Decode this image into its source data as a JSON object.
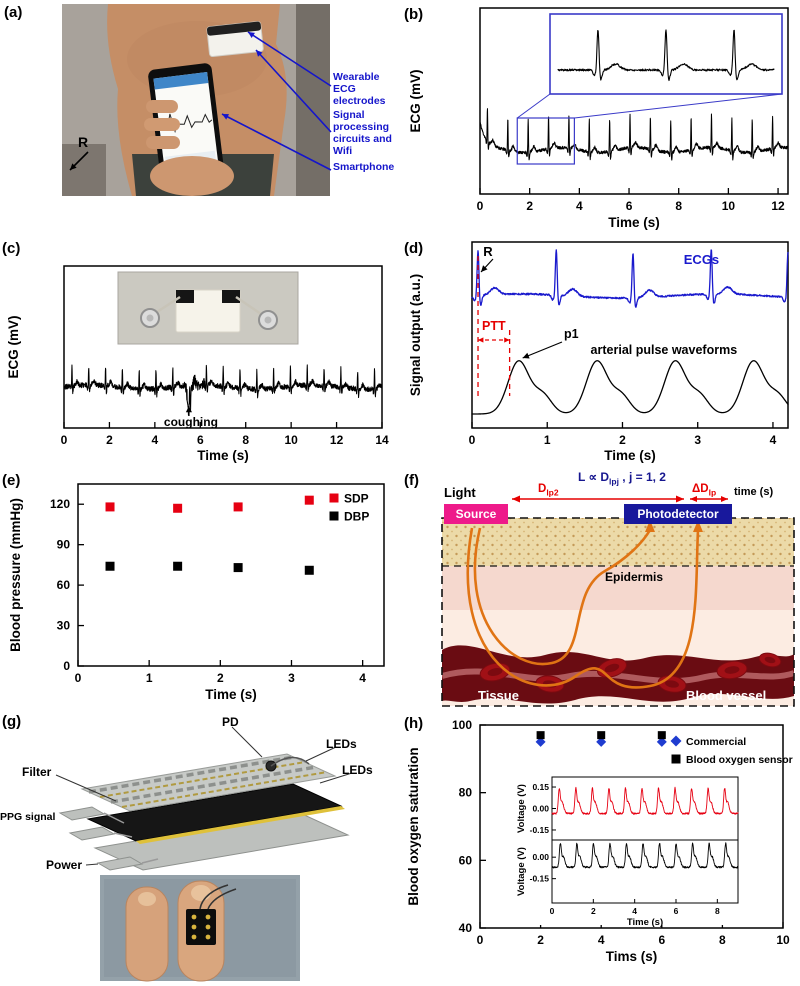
{
  "panels": {
    "a": {
      "label": "(a)",
      "r_marker": "R",
      "ann_electrodes": "Wearable ECG electrodes",
      "ann_circuits": "Signal processing circuits and Wifi",
      "ann_phone": "Smartphone"
    },
    "b": {
      "label": "(b)"
    },
    "c": {
      "label": "(c)"
    },
    "d": {
      "label": "(d)"
    },
    "e": {
      "label": "(e)"
    },
    "f": {
      "label": "(f)",
      "light": "Light",
      "formula_main": "L ∝ D",
      "formula_sub": "lpj",
      "formula_tail": " , j = 1, 2",
      "dlp2_main": "D",
      "dlp2_sub": "lp2",
      "ddlp_main": "ΔD",
      "ddlp_sub": "lp",
      "time_label": "time (s)",
      "source": "Source",
      "photodetector": "Photodetector",
      "epidermis": "Epidermis",
      "tissue": "Tissue",
      "blood_vessel": "Blood vessel"
    },
    "g": {
      "label": "(g)",
      "pd": "PD",
      "leds_top": "LEDs",
      "leds_bottom": "LEDs",
      "filter": "Filter",
      "ppg": "PPG signal",
      "power": "Power"
    },
    "h": {
      "label": "(h)"
    }
  },
  "chart_data": [
    {
      "id": "b",
      "type": "line",
      "xlabel": "Time (s)",
      "ylabel": "ECG (mV)",
      "xlim": [
        0,
        12.4
      ],
      "xticks": [
        0,
        2,
        4,
        6,
        8,
        10,
        12
      ],
      "series": [
        {
          "name": "ECG",
          "color": "#000000"
        }
      ],
      "ecg": {
        "first_peak": 0.3,
        "interval": 0.82
      },
      "zoom_region": [
        1.5,
        3.8
      ],
      "inset": {
        "border_color": "#3a3ac8",
        "beats": 3
      }
    },
    {
      "id": "c",
      "type": "line",
      "xlabel": "Time (s)",
      "ylabel": "ECG (mV)",
      "xlim": [
        0,
        14
      ],
      "xticks": [
        0,
        2,
        4,
        6,
        8,
        10,
        12,
        14
      ],
      "series": [
        {
          "name": "ECG",
          "color": "#000000"
        }
      ],
      "ecg": {
        "first_peak": 0.35,
        "interval": 0.74
      },
      "annotation": {
        "text": "coughing",
        "x": 5.5
      }
    },
    {
      "id": "d",
      "type": "line",
      "xlabel": "Time (s)",
      "ylabel": "Signal output (a.u.)",
      "xlim": [
        0,
        4.2
      ],
      "xticks": [
        0,
        1,
        2,
        3,
        4
      ],
      "series": [
        {
          "name": "ECGs",
          "color": "#1a1acd",
          "r_peaks": [
            0.08,
            1.12,
            2.14,
            3.18,
            4.2
          ]
        },
        {
          "name": "arterial pulse waveforms",
          "color": "#000000",
          "peaks": [
            0.62,
            1.66,
            2.7,
            3.74
          ]
        }
      ],
      "annotations": {
        "r_label": "R",
        "ptt_label": "PTT",
        "p1_label": "p1"
      },
      "ptt_region": [
        0.08,
        0.5
      ]
    },
    {
      "id": "e",
      "type": "scatter",
      "xlabel": "Time (s)",
      "ylabel": "Blood pressure (mmHg)",
      "xlim": [
        0,
        4.3
      ],
      "xticks": [
        0,
        1,
        2,
        3,
        4
      ],
      "ylim": [
        0,
        135
      ],
      "yticks": [
        0,
        30,
        60,
        90,
        120
      ],
      "series": [
        {
          "name": "SDP",
          "color": "#e60012",
          "marker": "square",
          "points": [
            [
              0.45,
              118
            ],
            [
              1.4,
              117
            ],
            [
              2.25,
              118
            ],
            [
              3.25,
              123
            ]
          ]
        },
        {
          "name": "DBP",
          "color": "#000000",
          "marker": "square",
          "points": [
            [
              0.45,
              74
            ],
            [
              1.4,
              74
            ],
            [
              2.25,
              73
            ],
            [
              3.25,
              71
            ]
          ]
        }
      ]
    },
    {
      "id": "h",
      "type": "scatter",
      "xlabel": "Tims (s)",
      "ylabel": "Blood oxygen saturation",
      "xlim": [
        0,
        10
      ],
      "xticks": [
        0,
        2,
        4,
        6,
        8,
        10
      ],
      "ylim": [
        40,
        100
      ],
      "yticks": [
        40,
        60,
        80,
        100
      ],
      "series": [
        {
          "name": "Commercial",
          "color": "#1f3cd0",
          "marker": "diamond",
          "points": [
            [
              2,
              95
            ],
            [
              4,
              95
            ],
            [
              6,
              95
            ]
          ]
        },
        {
          "name": "Blood oxygen sensor",
          "color": "#000000",
          "marker": "square",
          "points": [
            [
              2,
              97
            ],
            [
              4,
              97
            ],
            [
              6,
              97
            ]
          ]
        }
      ]
    },
    {
      "id": "h_inset",
      "type": "line",
      "xlabel": "Time (s)",
      "xlim": [
        0,
        9
      ],
      "xticks": [
        0,
        2,
        4,
        6,
        8
      ],
      "subplots": [
        {
          "ylabel": "Voltage (V)",
          "color": "#e60012",
          "yticks": [
            "0.15",
            "0.00",
            "-0.15"
          ],
          "ytick_vals": [
            0.15,
            0,
            -0.15
          ],
          "ylim": [
            -0.22,
            0.22
          ],
          "pulse": {
            "first": 0.35,
            "interval": 0.8
          }
        },
        {
          "ylabel": "Voltage (V)",
          "color": "#000000",
          "yticks": [
            "0.00",
            "-0.15"
          ],
          "ytick_vals": [
            0,
            -0.15
          ],
          "ylim": [
            -0.32,
            0.12
          ],
          "pulse": {
            "first": 0.4,
            "interval": 0.8
          }
        }
      ]
    }
  ]
}
